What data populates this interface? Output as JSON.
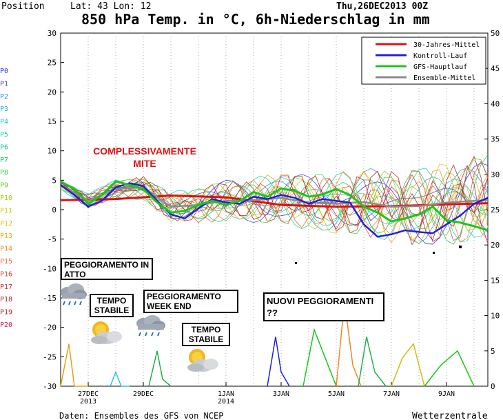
{
  "header": {
    "position_label": "Position",
    "lat_lon": "Lat: 43 Lon: 12",
    "run": "Thu,26DEC2013 00Z",
    "title": "850 hPa Temp. in °C, 6h-Niederschlag in mm"
  },
  "footer": {
    "source": "Daten: Ensembles des GFS von NCEP",
    "brand": "Wetterzentrale"
  },
  "members": [
    "P0",
    "P1",
    "P2",
    "P3",
    "P4",
    "P5",
    "P6",
    "P7",
    "P8",
    "P9",
    "P10",
    "P11",
    "P12",
    "P13",
    "P14",
    "P15",
    "P16",
    "P17",
    "P18",
    "P19",
    "P20"
  ],
  "member_colors": [
    "#2a2aff",
    "#3b4bd8",
    "#2f8fe0",
    "#19b0e8",
    "#10c7d6",
    "#12d0b0",
    "#18c890",
    "#20c060",
    "#30d040",
    "#60d020",
    "#98d010",
    "#c8d010",
    "#e0c010",
    "#f0a818",
    "#f08820",
    "#e86830",
    "#d84838",
    "#c83030",
    "#b82828",
    "#a82020",
    "#c02050"
  ],
  "annotations": {
    "headline": "COMPLESSIVAMENTE MITE",
    "box1": "PEGGIORAMENTO IN ATTO",
    "box2": "TEMPO STABILE",
    "box3": "PEGGIORAMENTO WEEK END",
    "box4": "TEMPO STABILE",
    "box5": "NUOVI PEGGIORAMENTI ??"
  },
  "chart_data": {
    "type": "line",
    "title": "850 hPa Temp. in °C, 6h-Niederschlag in mm",
    "xlabel": "",
    "ylabel": "",
    "x_ticks": [
      "27DEC 2013",
      "29DEC",
      "1JAN 2014",
      "3JAN",
      "5JAN",
      "7JAN",
      "9JAN"
    ],
    "x_range_days": [
      0,
      15.5
    ],
    "ylim_left": [
      -30,
      30
    ],
    "ylim_right": [
      0,
      50
    ],
    "y_ticks_left": [
      30,
      25,
      20,
      15,
      10,
      5,
      0,
      -5,
      -10,
      -15,
      -20,
      -25,
      -30
    ],
    "y_ticks_right": [
      50,
      45,
      40,
      35,
      30,
      25,
      20,
      15,
      10,
      5,
      0
    ],
    "grid": "vertical dotted",
    "legend_position": "top-right",
    "series": [
      {
        "name": "30-Jahres-Mittel",
        "color": "#e01010",
        "x": [
          0,
          2,
          4,
          6,
          8,
          10,
          12,
          14,
          15.5
        ],
        "y": [
          1.6,
          1.8,
          2.4,
          2.1,
          0.8,
          0.5,
          0.6,
          0.9,
          1.1
        ]
      },
      {
        "name": "Kontroll-Lauf",
        "color": "#2020e0",
        "x": [
          0,
          0.5,
          1,
          1.5,
          2,
          2.5,
          3,
          3.5,
          4,
          4.5,
          5,
          5.5,
          6,
          6.5,
          7,
          7.5,
          8,
          8.5,
          9,
          9.5,
          10,
          10.5,
          11,
          11.5,
          12,
          12.5,
          13,
          13.5,
          14,
          14.5,
          15,
          15.5
        ],
        "y": [
          4.2,
          2.5,
          0.5,
          1.5,
          3.8,
          4.5,
          4.0,
          1.5,
          -0.8,
          -1.5,
          0.2,
          1.8,
          1.2,
          1.0,
          2.2,
          1.8,
          2.5,
          2.0,
          1.0,
          1.8,
          1.5,
          1.2,
          -2.5,
          -4.6,
          -4.2,
          -3.5,
          -3.8,
          -4.0,
          -2.5,
          -1.0,
          1.0,
          2.0
        ]
      },
      {
        "name": "GFS-Hauptlauf",
        "color": "#18c818",
        "x": [
          0,
          0.5,
          1,
          1.5,
          2,
          2.5,
          3,
          3.5,
          4,
          4.5,
          5,
          5.5,
          6,
          6.5,
          7,
          7.5,
          8,
          8.5,
          9,
          9.5,
          10,
          10.5,
          11,
          11.5,
          12,
          12.5,
          13,
          13.5,
          14,
          14.5,
          15,
          15.5
        ],
        "y": [
          4.8,
          3.5,
          1.0,
          2.5,
          4.8,
          4.2,
          3.5,
          1.2,
          -0.5,
          -0.2,
          0.8,
          1.5,
          0.8,
          1.5,
          3.0,
          2.2,
          3.6,
          3.2,
          2.2,
          2.6,
          3.5,
          2.5,
          0.5,
          -0.5,
          -2.0,
          -1.5,
          -0.8,
          0.5,
          -1.8,
          -2.2,
          -2.8,
          -3.5
        ]
      },
      {
        "name": "Ensemble-Mittel",
        "color": "#8c8c8c",
        "x": [
          0,
          1,
          2,
          3,
          4,
          5,
          6,
          7,
          8,
          9,
          10,
          11,
          12,
          13,
          14,
          15,
          15.5
        ],
        "y": [
          4.2,
          1.5,
          3.5,
          3.8,
          0.5,
          0.8,
          1.5,
          1.6,
          2.0,
          1.2,
          1.0,
          1.3,
          0.5,
          0.6,
          1.2,
          1.5,
          1.6
        ]
      }
    ],
    "precipitation_mm": [
      {
        "x": [
          0,
          0.3,
          0.5,
          1
        ],
        "y": [
          0,
          6,
          0,
          0
        ]
      },
      {
        "x": [
          1.8,
          2.0,
          2.2,
          2.5
        ],
        "y": [
          0,
          2,
          0,
          0
        ]
      },
      {
        "x": [
          3.2,
          3.5,
          3.7,
          4.0
        ],
        "y": [
          0,
          5,
          1,
          0
        ]
      },
      {
        "x": [
          7.5,
          7.8,
          8.0,
          8.3
        ],
        "y": [
          0,
          7,
          2,
          0
        ]
      },
      {
        "x": [
          8.8,
          9.2,
          9.6,
          10.0
        ],
        "y": [
          0,
          8,
          4,
          0
        ]
      },
      {
        "x": [
          10.0,
          10.3,
          10.6,
          10.9
        ],
        "y": [
          0,
          12,
          3,
          0
        ]
      },
      {
        "x": [
          10.8,
          11.1,
          11.4,
          11.8
        ],
        "y": [
          0,
          7,
          2,
          0
        ]
      },
      {
        "x": [
          12.0,
          12.4,
          12.8,
          13.2
        ],
        "y": [
          0,
          4,
          6,
          0
        ]
      },
      {
        "x": [
          13.2,
          13.8,
          14.4,
          15.0
        ],
        "y": [
          0,
          3,
          5,
          0
        ]
      }
    ]
  }
}
